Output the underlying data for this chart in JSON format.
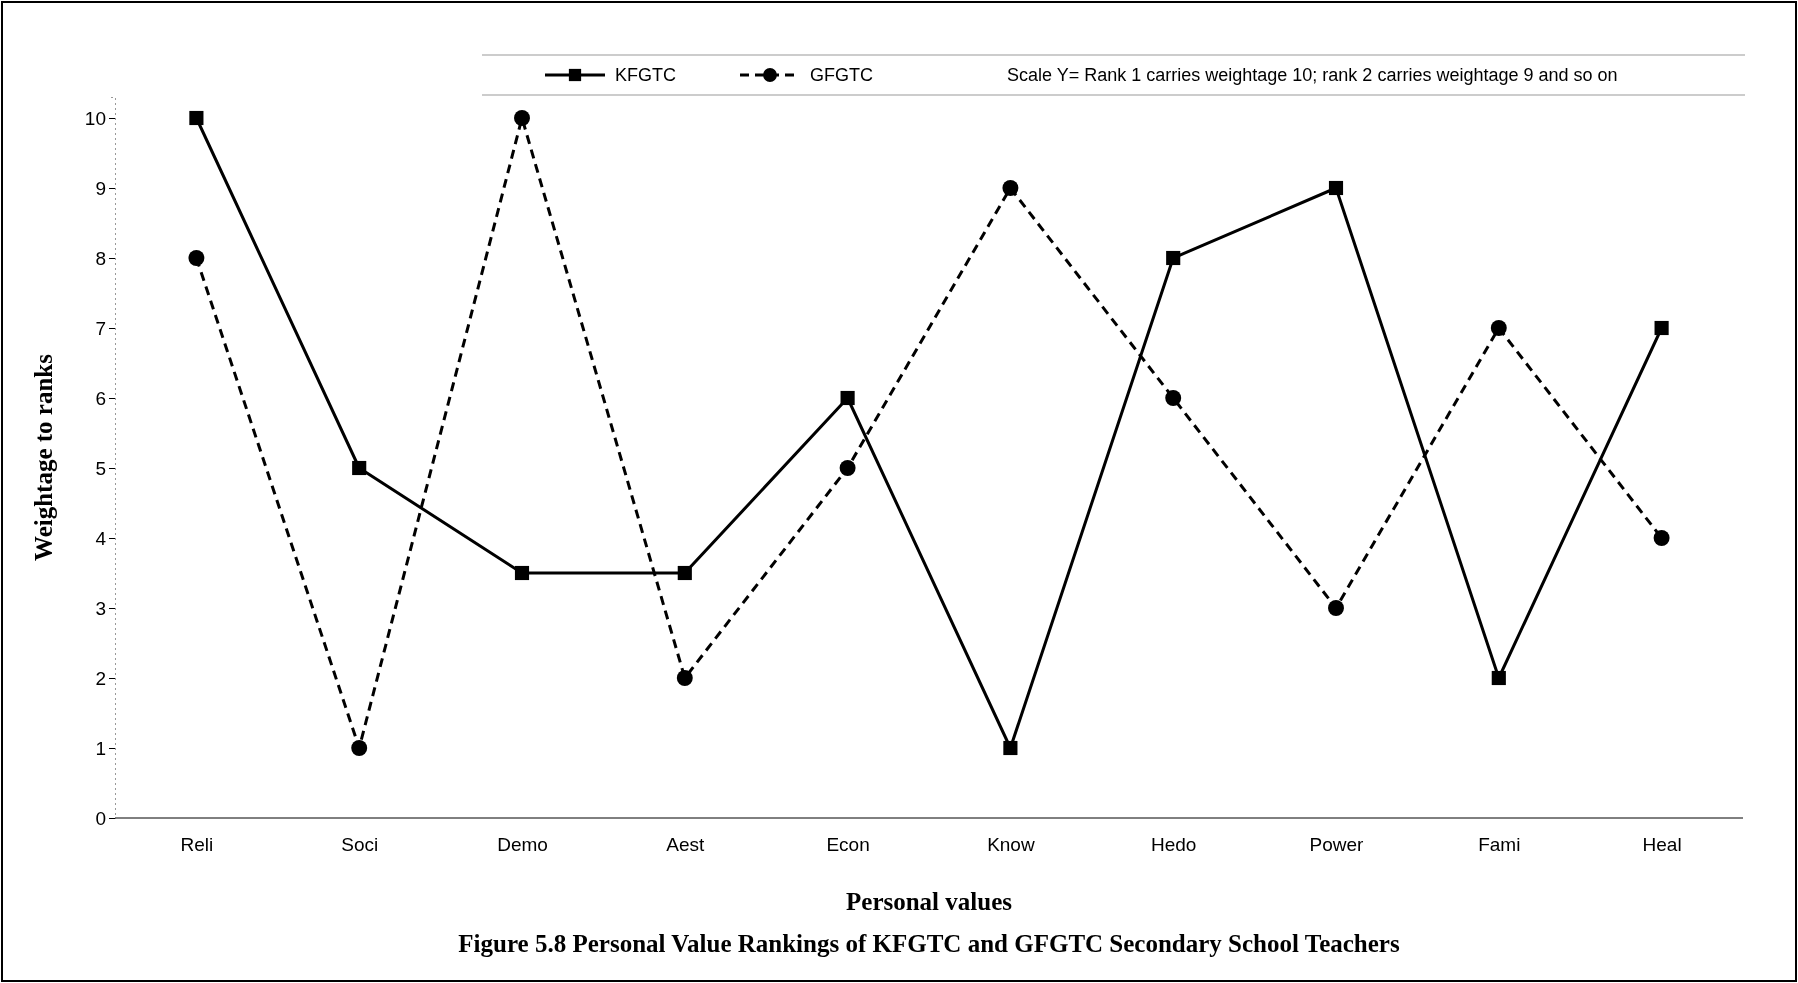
{
  "chart_data": {
    "type": "line",
    "title": "Figure 5.8 Personal Value Rankings of KFGTC and GFGTC Secondary School Teachers",
    "xlabel": "Personal values",
    "ylabel": "Weightage to ranks",
    "categories": [
      "Reli",
      "Soci",
      "Demo",
      "Aest",
      "Econ",
      "Know",
      "Hedo",
      "Power",
      "Fami",
      "Heal"
    ],
    "series": [
      {
        "name": "KFGTC",
        "color": "#000000",
        "marker": "square",
        "line_style": "solid",
        "values": [
          10,
          5,
          3.5,
          3.5,
          6,
          1,
          8,
          9,
          2,
          7
        ]
      },
      {
        "name": "GFGTC",
        "color": "#000000",
        "marker": "circle",
        "line_style": "dashed",
        "values": [
          8,
          1,
          10,
          2,
          5,
          9,
          6,
          3,
          7,
          4
        ]
      }
    ],
    "annotations": [
      "Scale Y= Rank 1 carries weightage 10; rank 2 carries weightage 9 and so on"
    ],
    "ylim": [
      0,
      10.3
    ],
    "yticks": [
      0,
      1,
      2,
      3,
      4,
      5,
      6,
      7,
      8,
      9,
      10
    ],
    "grid": false,
    "legend": "top"
  }
}
